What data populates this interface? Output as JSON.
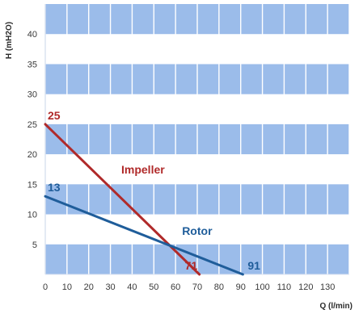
{
  "chart_data": {
    "type": "line",
    "title": "",
    "xlabel": "Q (l/min)",
    "ylabel": "H (mH2O)",
    "xlim": [
      0,
      140
    ],
    "ylim": [
      0,
      45
    ],
    "x_ticks": [
      0,
      10,
      20,
      30,
      40,
      50,
      60,
      70,
      80,
      90,
      100,
      110,
      120,
      130
    ],
    "y_ticks": [
      5,
      10,
      15,
      20,
      25,
      30,
      35,
      40
    ],
    "grid": true,
    "band_color": "#9bbcea",
    "series": [
      {
        "name": "Impeller",
        "color": "#b02a2a",
        "x": [
          0,
          71
        ],
        "y": [
          25,
          0
        ],
        "start_label": "25",
        "end_label": "71"
      },
      {
        "name": "Rotor",
        "color": "#1f5d9a",
        "x": [
          0,
          91
        ],
        "y": [
          13,
          0
        ],
        "start_label": "13",
        "end_label": "91"
      }
    ]
  }
}
